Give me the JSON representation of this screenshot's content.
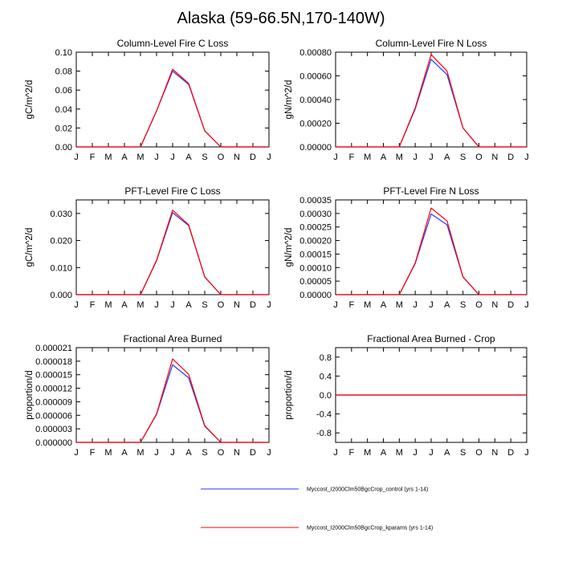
{
  "figure_title": "Alaska (59-66.5N,170-140W)",
  "colors": {
    "control": "#3333ff",
    "kparams": "#ff0000"
  },
  "legend": [
    {
      "label": "Myccost_I2000Clm50BgcCrop_control (yrs 1-14)",
      "color": "#3333ff"
    },
    {
      "label": "Myccost_I2000Clm50BgcCrop_kparams (yrs 1-14)",
      "color": "#ff0000"
    }
  ],
  "chart_data": [
    {
      "type": "line",
      "title": "Column-Level Fire C Loss",
      "ylabel": "gC/m^2/d",
      "categories": [
        "J",
        "F",
        "M",
        "A",
        "M",
        "J",
        "J",
        "A",
        "S",
        "O",
        "N",
        "D",
        "J"
      ],
      "ylim": [
        0,
        0.1
      ],
      "yticks": [
        "0.00",
        "0.02",
        "0.04",
        "0.06",
        "0.08",
        "0.10"
      ],
      "series": [
        {
          "name": "Myccost_I2000Clm50BgcCrop_control (yrs 1-14)",
          "color": "#3333ff",
          "values": [
            0,
            0,
            0,
            0,
            0,
            0.038,
            0.08,
            0.066,
            0.017,
            0,
            0,
            0,
            0
          ]
        },
        {
          "name": "Myccost_I2000Clm50BgcCrop_kparams (yrs 1-14)",
          "color": "#ff0000",
          "values": [
            0,
            0,
            0,
            0,
            0,
            0.038,
            0.082,
            0.067,
            0.017,
            0,
            0,
            0,
            0
          ]
        }
      ]
    },
    {
      "type": "line",
      "title": "Column-Level Fire N Loss",
      "ylabel": "gN/m^2/d",
      "categories": [
        "J",
        "F",
        "M",
        "A",
        "M",
        "J",
        "J",
        "A",
        "S",
        "O",
        "N",
        "D",
        "J"
      ],
      "ylim": [
        0,
        0.0008
      ],
      "yticks": [
        "0.00000",
        "0.00020",
        "0.00040",
        "0.00060",
        "0.00080"
      ],
      "series": [
        {
          "name": "Myccost_I2000Clm50BgcCrop_control (yrs 1-14)",
          "color": "#3333ff",
          "values": [
            0,
            0,
            0,
            0,
            0,
            0.00032,
            0.00074,
            0.00061,
            0.00016,
            0,
            0,
            0,
            0
          ]
        },
        {
          "name": "Myccost_I2000Clm50BgcCrop_kparams (yrs 1-14)",
          "color": "#ff0000",
          "values": [
            0,
            0,
            0,
            0,
            0,
            0.00033,
            0.00078,
            0.00064,
            0.00016,
            0,
            0,
            0,
            0
          ]
        }
      ]
    },
    {
      "type": "line",
      "title": "PFT-Level Fire C Loss",
      "ylabel": "gC/m^2/d",
      "categories": [
        "J",
        "F",
        "M",
        "A",
        "M",
        "J",
        "J",
        "A",
        "S",
        "O",
        "N",
        "D",
        "J"
      ],
      "ylim": [
        0,
        0.035
      ],
      "yticks": [
        "0.000",
        "0.010",
        "0.020",
        "0.030"
      ],
      "series": [
        {
          "name": "Myccost_I2000Clm50BgcCrop_control (yrs 1-14)",
          "color": "#3333ff",
          "values": [
            0,
            0,
            0,
            0,
            0,
            0.0125,
            0.0303,
            0.0255,
            0.0065,
            0,
            0,
            0,
            0
          ]
        },
        {
          "name": "Myccost_I2000Clm50BgcCrop_kparams (yrs 1-14)",
          "color": "#ff0000",
          "values": [
            0,
            0,
            0,
            0,
            0,
            0.0127,
            0.0312,
            0.0258,
            0.0066,
            0,
            0,
            0,
            0
          ]
        }
      ]
    },
    {
      "type": "line",
      "title": "PFT-Level Fire N Loss",
      "ylabel": "gN/m^2/d",
      "categories": [
        "J",
        "F",
        "M",
        "A",
        "M",
        "J",
        "J",
        "A",
        "S",
        "O",
        "N",
        "D",
        "J"
      ],
      "ylim": [
        0,
        0.00035
      ],
      "yticks": [
        "0.00000",
        "0.00005",
        "0.00010",
        "0.00015",
        "0.00020",
        "0.00025",
        "0.00030",
        "0.00035"
      ],
      "series": [
        {
          "name": "Myccost_I2000Clm50BgcCrop_control (yrs 1-14)",
          "color": "#3333ff",
          "values": [
            0,
            0,
            0,
            0,
            0,
            0.000115,
            0.000298,
            0.000258,
            6.5e-05,
            0,
            0,
            0,
            0
          ]
        },
        {
          "name": "Myccost_I2000Clm50BgcCrop_kparams (yrs 1-14)",
          "color": "#ff0000",
          "values": [
            0,
            0,
            0,
            0,
            0,
            0.000117,
            0.00032,
            0.000272,
            6.6e-05,
            0,
            0,
            0,
            0
          ]
        }
      ]
    },
    {
      "type": "line",
      "title": "Fractional Area Burned",
      "ylabel": "proportion/d",
      "categories": [
        "J",
        "F",
        "M",
        "A",
        "M",
        "J",
        "J",
        "A",
        "S",
        "O",
        "N",
        "D",
        "J"
      ],
      "ylim": [
        0,
        2.1e-05
      ],
      "yticks": [
        "0.000000",
        "0.000003",
        "0.000006",
        "0.000009",
        "0.000012",
        "0.000015",
        "0.000018",
        "0.000021"
      ],
      "series": [
        {
          "name": "Myccost_I2000Clm50BgcCrop_control (yrs 1-14)",
          "color": "#3333ff",
          "values": [
            0,
            0,
            0,
            0,
            0,
            6.2e-06,
            1.72e-05,
            1.43e-05,
            3.6e-06,
            0,
            0,
            0,
            0
          ]
        },
        {
          "name": "Myccost_I2000Clm50BgcCrop_kparams (yrs 1-14)",
          "color": "#ff0000",
          "values": [
            0,
            0,
            0,
            0,
            0,
            6.3e-06,
            1.85e-05,
            1.51e-05,
            3.7e-06,
            0,
            0,
            0,
            0
          ]
        }
      ]
    },
    {
      "type": "line",
      "title": "Fractional Area Burned - Crop",
      "ylabel": "proportion/d",
      "categories": [
        "J",
        "F",
        "M",
        "A",
        "M",
        "J",
        "J",
        "A",
        "S",
        "O",
        "N",
        "D",
        "J"
      ],
      "ylim": [
        -1,
        1
      ],
      "yticks": [
        "-0.8",
        "-0.4",
        "0.0",
        "0.4",
        "0.8"
      ],
      "ytick_values": [
        -0.8,
        -0.4,
        0,
        0.4,
        0.8
      ],
      "series": [
        {
          "name": "Myccost_I2000Clm50BgcCrop_control (yrs 1-14)",
          "color": "#3333ff",
          "values": [
            0,
            0,
            0,
            0,
            0,
            0,
            0,
            0,
            0,
            0,
            0,
            0,
            0
          ]
        },
        {
          "name": "Myccost_I2000Clm50BgcCrop_kparams (yrs 1-14)",
          "color": "#ff0000",
          "values": [
            0,
            0,
            0,
            0,
            0,
            0,
            0,
            0,
            0,
            0,
            0,
            0,
            0
          ]
        }
      ]
    }
  ]
}
